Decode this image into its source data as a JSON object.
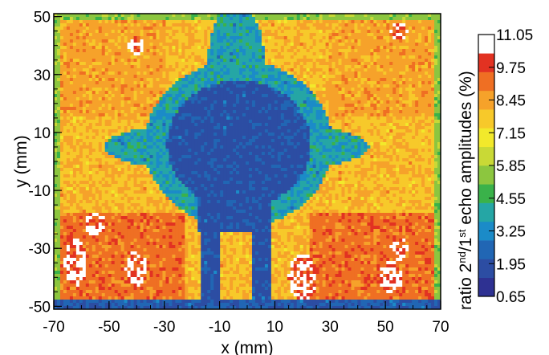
{
  "chart_data": {
    "type": "heatmap",
    "xlabel": "x (mm)",
    "ylabel": "y (mm)",
    "xlim": [
      -70,
      70
    ],
    "ylim": [
      -51,
      51
    ],
    "x_ticks": [
      "-70",
      "-50",
      "-30",
      "-10",
      "10",
      "30",
      "50",
      "70"
    ],
    "x_tick_values": [
      -70,
      -50,
      -30,
      -10,
      10,
      30,
      50,
      70
    ],
    "y_ticks": [
      "-50",
      "-30",
      "-10",
      "10",
      "30",
      "50"
    ],
    "y_tick_values": [
      -50,
      -30,
      -10,
      10,
      30,
      50
    ],
    "colorbar": {
      "title_parts": {
        "prefix": "ratio 2",
        "sup1": "nd",
        "mid": "/1",
        "sup2": "st",
        "suffix": " echo amplitudes (%)"
      },
      "labels": [
        "11.05",
        "9.75",
        "8.45",
        "7.15",
        "5.85",
        "4.55",
        "3.25",
        "1.95",
        "0.65"
      ],
      "values": [
        11.05,
        9.75,
        8.45,
        7.15,
        5.85,
        4.55,
        3.25,
        1.95,
        0.65
      ],
      "colors_low_to_high": [
        "#2e3192",
        "#2c4da3",
        "#2166b4",
        "#1b8bc8",
        "#25a6a5",
        "#3ab24a",
        "#8cc63f",
        "#c9d936",
        "#f2e92b",
        "#f7c92a",
        "#f6a22a",
        "#ef6f23",
        "#e23222",
        "#ffffff"
      ],
      "range": [
        0.65,
        11.05
      ]
    },
    "description_regions": {
      "background_level": 8.0,
      "central_dark_region_level": 1.5,
      "max_level": 11.05
    }
  }
}
